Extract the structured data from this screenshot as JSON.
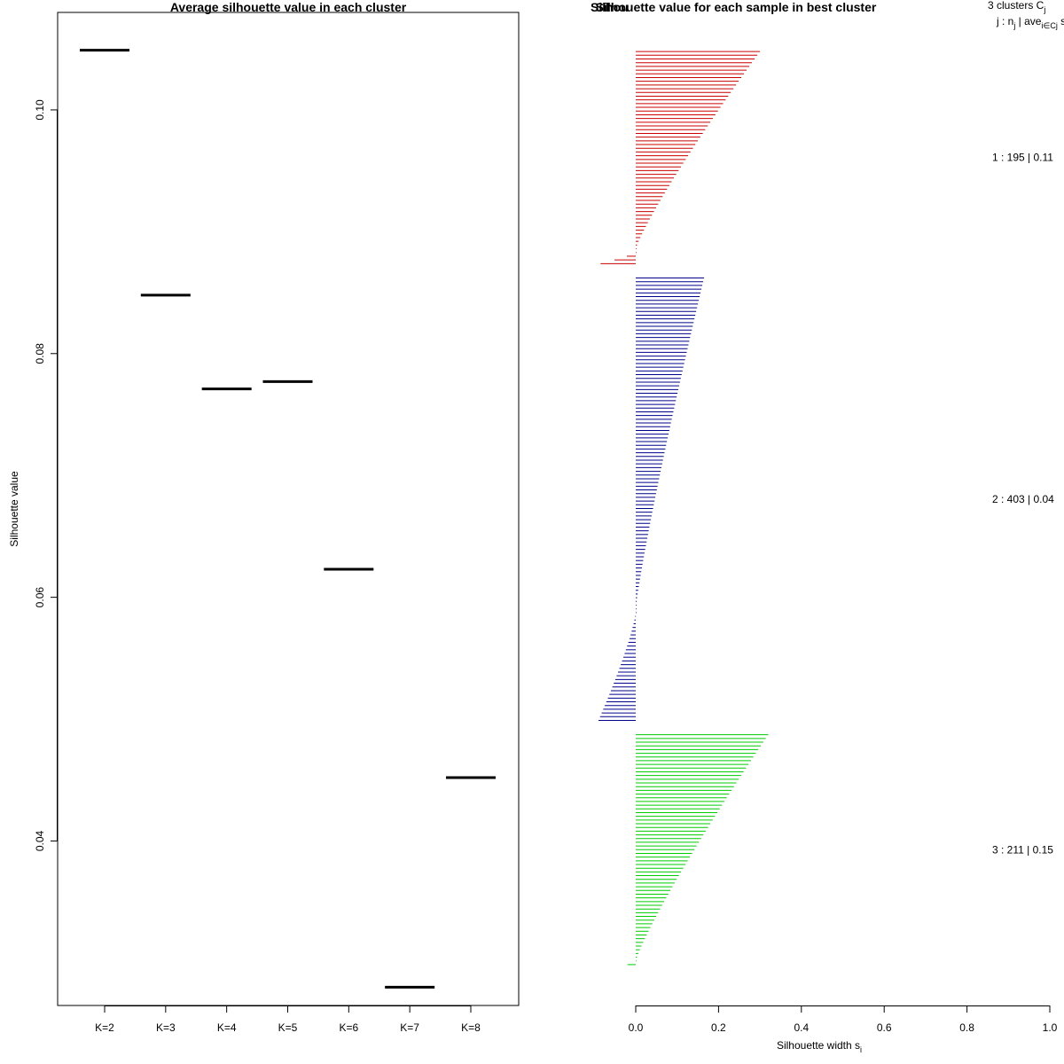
{
  "chart_data": [
    {
      "type": "scatter",
      "title": "Average silhouette value in each cluster",
      "xlabel": "",
      "ylabel": "Silhouette value",
      "categories": [
        "K=2",
        "K=3",
        "K=4",
        "K=5",
        "K=6",
        "K=7",
        "K=8"
      ],
      "values": [
        0.1049,
        0.0848,
        0.0771,
        0.0777,
        0.0623,
        0.028,
        0.0452
      ],
      "ylim": [
        0.0265,
        0.108
      ],
      "yticks": [
        0.04,
        0.06,
        0.08,
        0.1
      ],
      "ytick_labels": [
        "0.04",
        "0.06",
        "0.08",
        "0.10"
      ],
      "grid": false,
      "marker": "horizontal segment",
      "color": "#000000"
    },
    {
      "type": "bar",
      "orientation": "horizontal",
      "title": "Silhouette value for each sample in best cluster",
      "overlapping_title_fragment": "Silhou",
      "xlabel": "Silhouette width s",
      "xlabel_subscript": "i",
      "xlim": [
        0.0,
        1.0
      ],
      "xticks": [
        0.0,
        0.2,
        0.4,
        0.6,
        0.8,
        1.0
      ],
      "xtick_labels": [
        "0.0",
        "0.2",
        "0.4",
        "0.6",
        "0.8",
        "1.0"
      ],
      "legend_header": {
        "line1_text": "3  clusters  C",
        "line1_sub": "j",
        "line2_a": "j :  n",
        "line2_sub1": "j",
        "line2_b": " | ave",
        "line2_sub2": "i∈Cj",
        "line2_c": "  s"
      },
      "clusters": [
        {
          "id": 1,
          "n": 195,
          "ave": "0.11",
          "label": "1 :  195  |  0.11",
          "color": "#cc0000",
          "max": 0.3,
          "min": -0.085,
          "pos_fraction": 0.93
        },
        {
          "id": 2,
          "n": 403,
          "ave": "0.04",
          "label": "2 :  403  |  0.04",
          "color": "#00008b",
          "max": 0.165,
          "min": -0.09,
          "pos_fraction": 0.75
        },
        {
          "id": 3,
          "n": 211,
          "ave": "0.15",
          "label": "3 :  211  |  0.15",
          "color": "#00cc00",
          "max": 0.32,
          "min": -0.02,
          "pos_fraction": 0.985
        }
      ]
    }
  ]
}
